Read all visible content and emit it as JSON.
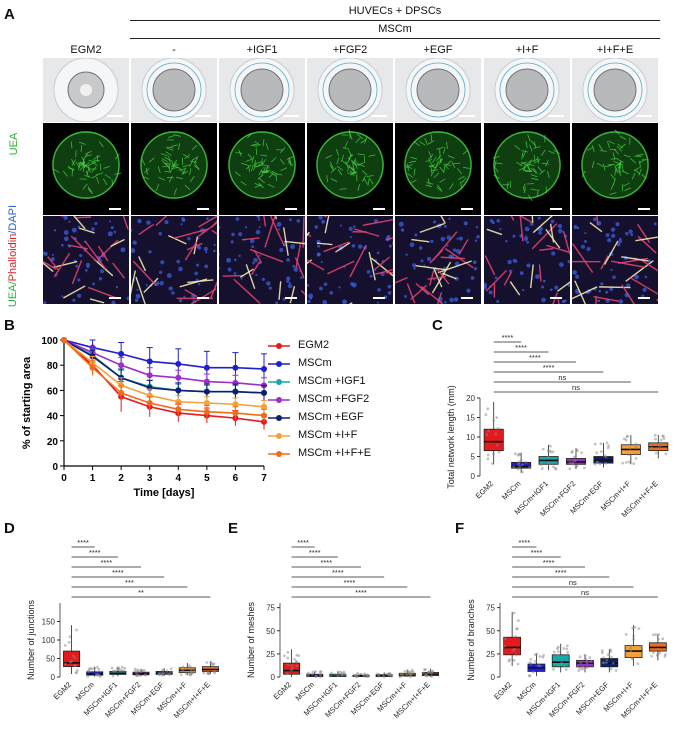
{
  "panel_labels": {
    "a": "A",
    "b": "B",
    "c": "C",
    "d": "D",
    "e": "E",
    "f": "F"
  },
  "header": {
    "top": "HUVECs + DPSCs",
    "sub": "MSCm",
    "columns": [
      "EGM2",
      "-",
      "+IGF1",
      "+FGF2",
      "+EGF",
      "+I+F",
      "+I+F+E"
    ]
  },
  "row_labels": {
    "uea": "UEA",
    "stain_uea": "UEA/",
    "stain_phalloidin": "Phalloidin",
    "stain_sep": "/",
    "stain_dapi": "DAPI"
  },
  "colors": {
    "uea": "#2bb13a",
    "phalloidin": "#d8232a",
    "dapi": "#2b5fd6",
    "groups": [
      "#e41a1c",
      "#1f1fcf",
      "#1aa7a7",
      "#9b30c9",
      "#0c1f6e",
      "#f5a13a",
      "#f26b1d"
    ]
  },
  "chart_data": [
    {
      "id": "B",
      "type": "line",
      "xlabel": "Time [days]",
      "ylabel": "% of starting area",
      "xlim": [
        0,
        7
      ],
      "ylim": [
        0,
        100
      ],
      "xticks": [
        0,
        1,
        2,
        3,
        4,
        5,
        6,
        7
      ],
      "yticks": [
        0,
        20,
        40,
        60,
        80,
        100
      ],
      "legend": "right",
      "x": [
        0,
        1,
        2,
        3,
        4,
        5,
        6,
        7
      ],
      "series": [
        {
          "name": "EGM2",
          "values": [
            100,
            80,
            55,
            47,
            42,
            40,
            38,
            35
          ],
          "errors": [
            0,
            8,
            12,
            8,
            7,
            6,
            6,
            6
          ]
        },
        {
          "name": "MSCm",
          "values": [
            100,
            94,
            89,
            83,
            81,
            78,
            78,
            77
          ],
          "errors": [
            0,
            6,
            9,
            11,
            12,
            13,
            12,
            12
          ]
        },
        {
          "name": "MSCm +IGF1",
          "values": [
            100,
            88,
            70,
            63,
            60,
            59,
            59,
            58
          ],
          "errors": [
            0,
            5,
            6,
            5,
            5,
            5,
            5,
            5
          ]
        },
        {
          "name": "MSCm +FGF2",
          "values": [
            100,
            90,
            80,
            72,
            70,
            67,
            66,
            64
          ],
          "errors": [
            0,
            5,
            6,
            6,
            6,
            6,
            6,
            6
          ]
        },
        {
          "name": "MSCm +EGF",
          "values": [
            100,
            87,
            70,
            62,
            60,
            59,
            59,
            58
          ],
          "errors": [
            0,
            5,
            7,
            6,
            6,
            6,
            6,
            6
          ]
        },
        {
          "name": "MSCm +I+F",
          "values": [
            100,
            82,
            64,
            56,
            51,
            50,
            49,
            47
          ],
          "errors": [
            0,
            5,
            6,
            5,
            5,
            5,
            5,
            5
          ]
        },
        {
          "name": "MSCm +I+F+E",
          "values": [
            100,
            78,
            58,
            50,
            45,
            43,
            42,
            40
          ],
          "errors": [
            0,
            6,
            6,
            5,
            5,
            5,
            5,
            5
          ]
        }
      ]
    },
    {
      "id": "C",
      "type": "box",
      "ylabel": "Total network length (mm)",
      "ylim": [
        0,
        20
      ],
      "yticks": [
        0,
        5,
        10,
        15,
        20
      ],
      "categories": [
        "EGM2",
        "MSCm",
        "MSCm+IGF1",
        "MSCm+FGF2",
        "MSCm+EGF",
        "MSCm+I+F",
        "MSCm+I+F+E"
      ],
      "boxes": [
        {
          "min": 3,
          "q1": 6.5,
          "median": 8.8,
          "q3": 12,
          "max": 19
        },
        {
          "min": 0.8,
          "q1": 2,
          "median": 2.5,
          "q3": 3.5,
          "max": 6
        },
        {
          "min": 1.5,
          "q1": 3,
          "median": 4,
          "q3": 5,
          "max": 8
        },
        {
          "min": 1.8,
          "q1": 3,
          "median": 3.6,
          "q3": 4.5,
          "max": 7
        },
        {
          "min": 2.2,
          "q1": 3.3,
          "median": 4,
          "q3": 5,
          "max": 8.5
        },
        {
          "min": 3,
          "q1": 5.5,
          "median": 6.8,
          "q3": 8,
          "max": 10.5
        },
        {
          "min": 4.5,
          "q1": 6.5,
          "median": 7.5,
          "q3": 8.5,
          "max": 10.5
        }
      ],
      "comparisons": [
        {
          "from": 0,
          "to": 1,
          "label": "****"
        },
        {
          "from": 0,
          "to": 2,
          "label": "****"
        },
        {
          "from": 0,
          "to": 3,
          "label": "****"
        },
        {
          "from": 0,
          "to": 4,
          "label": "****"
        },
        {
          "from": 0,
          "to": 5,
          "label": "ns"
        },
        {
          "from": 0,
          "to": 6,
          "label": "ns"
        }
      ]
    },
    {
      "id": "D",
      "type": "box",
      "ylabel": "Number of junctions",
      "ylim": [
        0,
        200
      ],
      "yticks": [
        0,
        50,
        100,
        150
      ],
      "categories": [
        "EGM2",
        "MSCm",
        "MSCm+IGF1",
        "MSCm+FGF2",
        "MSCm+EGF",
        "MSCm+I+F",
        "MSCm+I+F+E"
      ],
      "boxes": [
        {
          "min": 8,
          "q1": 28,
          "median": 38,
          "q3": 70,
          "max": 140
        },
        {
          "min": 1,
          "q1": 5,
          "median": 8,
          "q3": 14,
          "max": 28
        },
        {
          "min": 2,
          "q1": 7,
          "median": 10,
          "q3": 15,
          "max": 28
        },
        {
          "min": 2,
          "q1": 6,
          "median": 9,
          "q3": 13,
          "max": 22
        },
        {
          "min": 3,
          "q1": 7,
          "median": 10,
          "q3": 15,
          "max": 24
        },
        {
          "min": 5,
          "q1": 12,
          "median": 18,
          "q3": 25,
          "max": 38
        },
        {
          "min": 8,
          "q1": 15,
          "median": 20,
          "q3": 28,
          "max": 40
        }
      ],
      "comparisons": [
        {
          "from": 0,
          "to": 1,
          "label": "****"
        },
        {
          "from": 0,
          "to": 2,
          "label": "****"
        },
        {
          "from": 0,
          "to": 3,
          "label": "****"
        },
        {
          "from": 0,
          "to": 4,
          "label": "****"
        },
        {
          "from": 0,
          "to": 5,
          "label": "***"
        },
        {
          "from": 0,
          "to": 6,
          "label": "**"
        }
      ]
    },
    {
      "id": "E",
      "type": "box",
      "ylabel": "Number of meshes",
      "ylim": [
        0,
        80
      ],
      "yticks": [
        0,
        25,
        50,
        75
      ],
      "categories": [
        "EGM2",
        "MSCm",
        "MSCm+IGF1",
        "MSCm+FGF2",
        "MSCm+EGF",
        "MSCm+I+F",
        "MSCm+I+F+E"
      ],
      "boxes": [
        {
          "min": 0,
          "q1": 3,
          "median": 7,
          "q3": 15,
          "max": 30
        },
        {
          "min": 0,
          "q1": 0.5,
          "median": 1.5,
          "q3": 3,
          "max": 6
        },
        {
          "min": 0,
          "q1": 0.5,
          "median": 1.5,
          "q3": 3,
          "max": 6
        },
        {
          "min": 0,
          "q1": 0.5,
          "median": 1,
          "q3": 2,
          "max": 4
        },
        {
          "min": 0,
          "q1": 0.5,
          "median": 1.5,
          "q3": 2.5,
          "max": 5
        },
        {
          "min": 0,
          "q1": 1,
          "median": 2,
          "q3": 4,
          "max": 8
        },
        {
          "min": 0,
          "q1": 1.5,
          "median": 3,
          "q3": 5,
          "max": 9
        }
      ],
      "comparisons": [
        {
          "from": 0,
          "to": 1,
          "label": "****"
        },
        {
          "from": 0,
          "to": 2,
          "label": "****"
        },
        {
          "from": 0,
          "to": 3,
          "label": "****"
        },
        {
          "from": 0,
          "to": 4,
          "label": "****"
        },
        {
          "from": 0,
          "to": 5,
          "label": "****"
        },
        {
          "from": 0,
          "to": 6,
          "label": "****"
        }
      ]
    },
    {
      "id": "F",
      "type": "box",
      "ylabel": "Number of branches",
      "ylim": [
        0,
        80
      ],
      "yticks": [
        0,
        25,
        50,
        75
      ],
      "categories": [
        "EGM2",
        "MSCm",
        "MSCm+IGF1",
        "MSCm+FGF2",
        "MSCm+EGF",
        "MSCm+I+F",
        "MSCm+I+F+E"
      ],
      "boxes": [
        {
          "min": 12,
          "q1": 24,
          "median": 32,
          "q3": 43,
          "max": 70
        },
        {
          "min": 1,
          "q1": 6,
          "median": 10,
          "q3": 14,
          "max": 25
        },
        {
          "min": 5,
          "q1": 11,
          "median": 16,
          "q3": 24,
          "max": 36
        },
        {
          "min": 5,
          "q1": 11,
          "median": 15,
          "q3": 18,
          "max": 24
        },
        {
          "min": 5,
          "q1": 11,
          "median": 15,
          "q3": 20,
          "max": 30
        },
        {
          "min": 12,
          "q1": 21,
          "median": 28,
          "q3": 34,
          "max": 56
        },
        {
          "min": 18,
          "q1": 28,
          "median": 32,
          "q3": 37,
          "max": 46
        }
      ],
      "comparisons": [
        {
          "from": 0,
          "to": 1,
          "label": "****"
        },
        {
          "from": 0,
          "to": 2,
          "label": "****"
        },
        {
          "from": 0,
          "to": 3,
          "label": "****"
        },
        {
          "from": 0,
          "to": 4,
          "label": "****"
        },
        {
          "from": 0,
          "to": 5,
          "label": "ns"
        },
        {
          "from": 0,
          "to": 6,
          "label": "ns"
        }
      ]
    }
  ]
}
